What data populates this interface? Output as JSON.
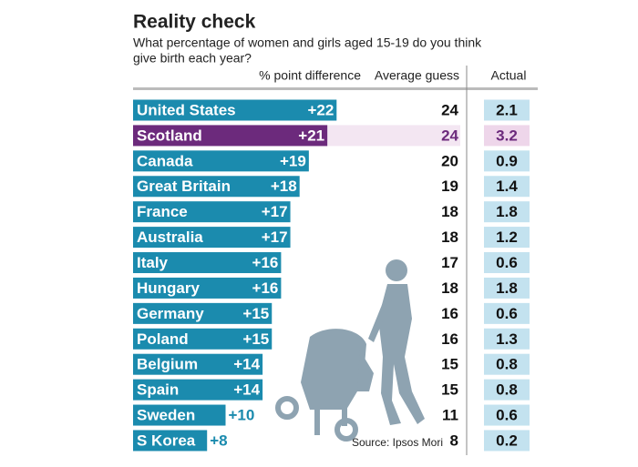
{
  "chart_data": {
    "type": "bar",
    "title": "Reality check",
    "subtitle": [
      "What percentage of women and girls aged 15-19 do you think",
      "give birth each year?"
    ],
    "column_headers": [
      "% point difference",
      "Average guess",
      "Actual"
    ],
    "categories": [
      "United States",
      "Scotland",
      "Canada",
      "Great Britain",
      "France",
      "Australia",
      "Italy",
      "Hungary",
      "Germany",
      "Poland",
      "Belgium",
      "Spain",
      "Sweden",
      "S Korea"
    ],
    "series": [
      {
        "name": "% point difference",
        "color": "#1b8bae",
        "values": [
          22,
          21,
          19,
          18,
          17,
          17,
          16,
          16,
          15,
          15,
          14,
          14,
          10,
          8
        ],
        "value_labels": [
          "+22",
          "+21",
          "+19",
          "+18",
          "+17",
          "+17",
          "+16",
          "+16",
          "+15",
          "+15",
          "+14",
          "+14",
          "+10",
          "+8"
        ]
      },
      {
        "name": "Average guess",
        "values": [
          24,
          24,
          20,
          19,
          18,
          18,
          17,
          18,
          16,
          16,
          15,
          15,
          11,
          8
        ]
      },
      {
        "name": "Actual",
        "values": [
          2.1,
          3.2,
          0.9,
          1.4,
          1.8,
          1.2,
          0.6,
          1.8,
          0.6,
          1.3,
          0.8,
          0.8,
          0.6,
          0.2
        ]
      }
    ],
    "bar_colors": [
      "#1b8bae",
      "#6c2a7c",
      "#1b8bae",
      "#1b8bae",
      "#1b8bae",
      "#1b8bae",
      "#1b8bae",
      "#1b8bae",
      "#1b8bae",
      "#1b8bae",
      "#1b8bae",
      "#1b8bae",
      "#1b8bae",
      "#1b8bae"
    ],
    "source": "Source: Ipsos Mori"
  }
}
